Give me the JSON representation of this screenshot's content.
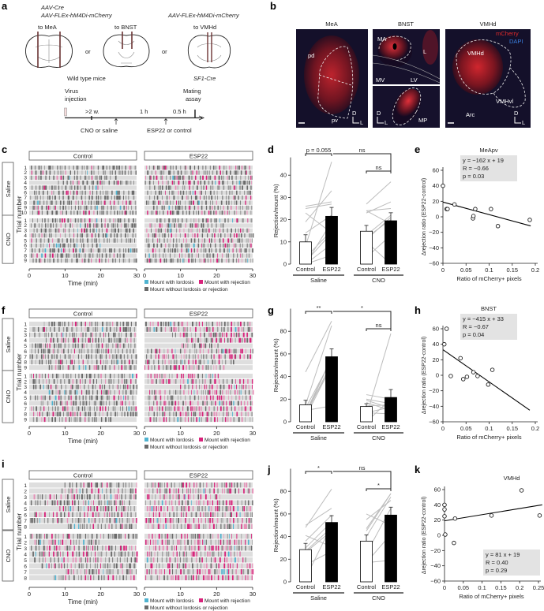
{
  "panel_labels": {
    "a": "a",
    "b": "b",
    "c": "c",
    "d": "d",
    "e": "e",
    "f": "f",
    "g": "g",
    "h": "h",
    "i": "i",
    "j": "j",
    "k": "k"
  },
  "panel_a": {
    "virus_left_1": "AAV-Cre",
    "virus_left_2": "AAV-FLEx-hM4Di-mCherry",
    "virus_right": "AAV-FLEx-hM4Di-mCherry",
    "target_1": "to MeA",
    "target_2": "to BNST",
    "target_3": "to VMHd",
    "or_1": "or",
    "or_2": "or",
    "mouse_left": "Wild type mice",
    "mouse_right": "SF1-Cre",
    "virus_injection_1": "Virus",
    "virus_injection_2": "injection",
    "mating_1": "Mating",
    "mating_2": "assay",
    "interval_1": ">2 w.",
    "interval_2": "1 h",
    "interval_3": "0.5 h",
    "event_1": "CNO or saline",
    "event_2": "ESP22 or control"
  },
  "panel_b": {
    "title_meа": "MeA",
    "title_bnst": "BNST",
    "title_vmhd": "VMHd",
    "meа_pd": "pd",
    "meа_pv": "pv",
    "bnst_ma": "MA",
    "bnst_l": "L",
    "bnst_mv": "MV",
    "bnst_lv": "LV",
    "bnst_mp": "MP",
    "vmh_vmhd": "VMHd",
    "vmh_vmhvl": "VMHvl",
    "vmh_arc": "Arc",
    "legend_mcherry": "mCherry",
    "legend_dapi": "DAPI",
    "axis_d": "D",
    "axis_l": "L"
  },
  "colors": {
    "lordosis": "#4fb3d0",
    "rejection": "#d8237b",
    "rejection_light": "#e690b8",
    "no_response": "#6a6a6a",
    "row_bg": "#dedede",
    "pair_line": "#bdbdbd",
    "stats_box": "#e3e3e3"
  },
  "chart_data": [
    {
      "panel": "c",
      "type": "raster",
      "columns": [
        "Control",
        "ESP22"
      ],
      "groups": [
        {
          "name": "Saline",
          "trials": 10
        },
        {
          "name": "CNO",
          "trials": 9
        }
      ],
      "xlabel": "Time (min)",
      "ylabel": "Trial number",
      "xticks": [
        0,
        10,
        20,
        30
      ],
      "xlim": [
        0,
        30
      ],
      "legend": [
        "Mount with lordosis",
        "Mount with rejection",
        "Mount without lordosis or rejection"
      ],
      "rejection_rate": {
        "Control": 0.12,
        "ESP22": 0.22
      }
    },
    {
      "panel": "d",
      "type": "bar",
      "ylabel": "Rejection/mount (%)",
      "yticks": [
        0,
        10,
        20,
        30,
        40
      ],
      "ylim": [
        0,
        48
      ],
      "groups": [
        {
          "name": "Saline",
          "bars": [
            {
              "label": "Control",
              "mean": 10,
              "sem": 3.2
            },
            {
              "label": "ESP22",
              "mean": 21.5,
              "sem": 4
            }
          ],
          "pairs": [
            [
              26,
              28
            ],
            [
              23,
              14
            ],
            [
              19,
              33
            ],
            [
              8,
              46
            ],
            [
              3,
              15
            ],
            [
              1,
              14
            ],
            [
              0,
              9
            ],
            [
              0,
              4
            ],
            [
              14,
              22
            ],
            [
              0,
              19
            ],
            [
              25,
              27
            ]
          ]
        },
        {
          "name": "CNO",
          "bars": [
            {
              "label": "Control",
              "mean": 14.8,
              "sem": 2.6
            },
            {
              "label": "ESP22",
              "mean": 19.5,
              "sem": 3.6
            }
          ],
          "pairs": [
            [
              27,
              37
            ],
            [
              24,
              25
            ],
            [
              23,
              28
            ],
            [
              13,
              22
            ],
            [
              11,
              21
            ],
            [
              10,
              0
            ],
            [
              3,
              13
            ],
            [
              12,
              20
            ],
            [
              24,
              18
            ]
          ]
        }
      ],
      "comparisons": [
        {
          "text": "p = 0.055",
          "from": 0,
          "to": 1
        },
        {
          "text": "ns",
          "from": 1,
          "to": 3
        },
        {
          "text": "ns",
          "from": 2,
          "to": 3
        }
      ]
    },
    {
      "panel": "e",
      "type": "scatter",
      "title": "MeApv",
      "xlabel": "Ratio of mCherry+ pixels",
      "ylabel": "Δrejection ratio (ESP22-control)",
      "xlim": [
        0,
        0.2
      ],
      "ylim": [
        -60,
        60
      ],
      "xticks": [
        0,
        0.05,
        0.1,
        0.15,
        0.2
      ],
      "yticks": [
        -60,
        -40,
        -20,
        0,
        20,
        40,
        60
      ],
      "points": [
        [
          0,
          40
        ],
        [
          0.008,
          10
        ],
        [
          0.01,
          10
        ],
        [
          0.025,
          16
        ],
        [
          0.065,
          -2
        ],
        [
          0.066,
          1
        ],
        [
          0.07,
          10
        ],
        [
          0.104,
          10
        ],
        [
          0.119,
          -12
        ],
        [
          0.188,
          -4
        ]
      ],
      "fit": {
        "slope": -162,
        "intercept": 19,
        "xmax": 0.19
      },
      "stats": [
        "y = −162 x + 19",
        "R = −0.66",
        "p = 0.03"
      ],
      "stats_placement": "top"
    },
    {
      "panel": "f",
      "type": "raster",
      "columns": [
        "Control",
        "ESP22"
      ],
      "groups": [
        {
          "name": "Saline",
          "trials": 9
        },
        {
          "name": "CNO",
          "trials": 9
        }
      ],
      "xlabel": "Time (min)",
      "ylabel": "Trial number",
      "xticks": [
        0,
        10,
        20,
        30
      ],
      "xlim": [
        0,
        30
      ],
      "legend": [
        "Mount with lordosis",
        "Mount with rejection",
        "Mount without lordosis or rejection"
      ],
      "rejection_rate": {
        "Control": 0.14,
        "ESP22": 0.45
      }
    },
    {
      "panel": "g",
      "type": "bar",
      "ylabel": "Rejection/mount (%)",
      "yticks": [
        0,
        20,
        40,
        60,
        80
      ],
      "ylim": [
        0,
        100
      ],
      "groups": [
        {
          "name": "Saline",
          "bars": [
            {
              "label": "Control",
              "mean": 15,
              "sem": 4
            },
            {
              "label": "ESP22",
              "mean": 57.5,
              "sem": 7
            }
          ],
          "pairs": [
            [
              44,
              89
            ],
            [
              15,
              85
            ],
            [
              8,
              56
            ],
            [
              5,
              58
            ],
            [
              10,
              14
            ],
            [
              6,
              52
            ],
            [
              4,
              50
            ],
            [
              12,
              55
            ],
            [
              9,
              48
            ]
          ]
        },
        {
          "name": "CNO",
          "bars": [
            {
              "label": "Control",
              "mean": 13.5,
              "sem": 2.5
            },
            {
              "label": "ESP22",
              "mean": 21.5,
              "sem": 7
            }
          ],
          "pairs": [
            [
              5,
              78
            ],
            [
              24,
              20
            ],
            [
              19,
              12
            ],
            [
              20,
              16
            ],
            [
              8,
              7
            ],
            [
              0,
              20
            ],
            [
              17,
              10
            ],
            [
              14,
              15
            ],
            [
              8,
              13
            ]
          ]
        }
      ],
      "comparisons": [
        {
          "text": "**",
          "from": 0,
          "to": 1
        },
        {
          "text": "*",
          "from": 1,
          "to": 3
        },
        {
          "text": "ns",
          "from": 2,
          "to": 3
        }
      ]
    },
    {
      "panel": "h",
      "type": "scatter",
      "title": "BNST",
      "xlabel": "Ratio of mCherry+ pixels",
      "ylabel": "Δrejection ratio (ESP22-control)",
      "xlim": [
        0,
        0.2
      ],
      "ylim": [
        -60,
        60
      ],
      "xticks": [
        0,
        0.05,
        0.1,
        0.15,
        0.2
      ],
      "yticks": [
        -60,
        -40,
        -20,
        0,
        20,
        40,
        60
      ],
      "points": [
        [
          0.003,
          40
        ],
        [
          0.008,
          60
        ],
        [
          0.017,
          -1
        ],
        [
          0.038,
          22
        ],
        [
          0.044,
          -5
        ],
        [
          0.052,
          -2
        ],
        [
          0.066,
          4
        ],
        [
          0.075,
          -1
        ],
        [
          0.098,
          -12
        ],
        [
          0.107,
          7
        ]
      ],
      "fit": {
        "slope": -415,
        "intercept": 33,
        "xmax": 0.188
      },
      "stats": [
        "y = −415 x + 33",
        "R = −0.67",
        "p = 0.04"
      ],
      "stats_placement": "top"
    },
    {
      "panel": "i",
      "type": "raster",
      "columns": [
        "Control",
        "ESP22"
      ],
      "groups": [
        {
          "name": "Saline",
          "trials": 8
        },
        {
          "name": "CNO",
          "trials": 8
        }
      ],
      "xlabel": "Time (min)",
      "ylabel": "Trial number",
      "xticks": [
        0,
        10,
        20,
        30
      ],
      "xlim": [
        0,
        30
      ],
      "legend": [
        "Mount with lordosis",
        "Mount with rejection",
        "Mount without lordosis or rejection"
      ],
      "rejection_rate": {
        "Control": 0.3,
        "ESP22": 0.55
      }
    },
    {
      "panel": "j",
      "type": "bar",
      "ylabel": "Rejection/mount (%)",
      "yticks": [
        0,
        20,
        40,
        60,
        80
      ],
      "ylim": [
        0,
        100
      ],
      "groups": [
        {
          "name": "Saline",
          "bars": [
            {
              "label": "Control",
              "mean": 28.5,
              "sem": 5.5
            },
            {
              "label": "ESP22",
              "mean": 52.5,
              "sem": 6
            }
          ],
          "pairs": [
            [
              48,
              82
            ],
            [
              50,
              65
            ],
            [
              41,
              31
            ],
            [
              36,
              59
            ],
            [
              30,
              53
            ],
            [
              27,
              48
            ],
            [
              15,
              27
            ],
            [
              3,
              50
            ],
            [
              26,
              45
            ]
          ]
        },
        {
          "name": "CNO",
          "bars": [
            {
              "label": "Control",
              "mean": 36,
              "sem": 5.5
            },
            {
              "label": "ESP22",
              "mean": 59,
              "sem": 7
            }
          ],
          "pairs": [
            [
              60,
              50
            ],
            [
              55,
              72
            ],
            [
              47,
              78
            ],
            [
              45,
              78
            ],
            [
              40,
              75
            ],
            [
              17,
              19
            ],
            [
              17,
              42
            ],
            [
              25,
              65
            ]
          ]
        }
      ],
      "comparisons": [
        {
          "text": "*",
          "from": 0,
          "to": 1
        },
        {
          "text": "ns",
          "from": 1,
          "to": 3
        },
        {
          "text": "*",
          "from": 2,
          "to": 3
        }
      ]
    },
    {
      "panel": "k",
      "type": "scatter",
      "title": "VMHd",
      "xlabel": "Ratio of mCherry+ pixels",
      "ylabel": "Δrejection ratio (ESP22-control)",
      "xlim": [
        0,
        0.25
      ],
      "ylim": [
        -60,
        60
      ],
      "xticks": [
        0,
        0.05,
        0.1,
        0.15,
        0.2,
        0.25
      ],
      "yticks": [
        -60,
        -40,
        -20,
        0,
        20,
        40,
        60
      ],
      "points": [
        [
          0,
          40
        ],
        [
          0,
          34
        ],
        [
          0,
          25
        ],
        [
          0.002,
          1
        ],
        [
          0.025,
          -10
        ],
        [
          0.028,
          22
        ],
        [
          0.125,
          26
        ],
        [
          0.205,
          59
        ],
        [
          0.253,
          26
        ]
      ],
      "fit": {
        "slope": 81,
        "intercept": 19,
        "xmax": 0.26
      },
      "stats": [
        "y = 81 x + 19",
        "R = 0.40",
        "p = 0.29"
      ],
      "stats_placement": "bottom-right"
    }
  ]
}
